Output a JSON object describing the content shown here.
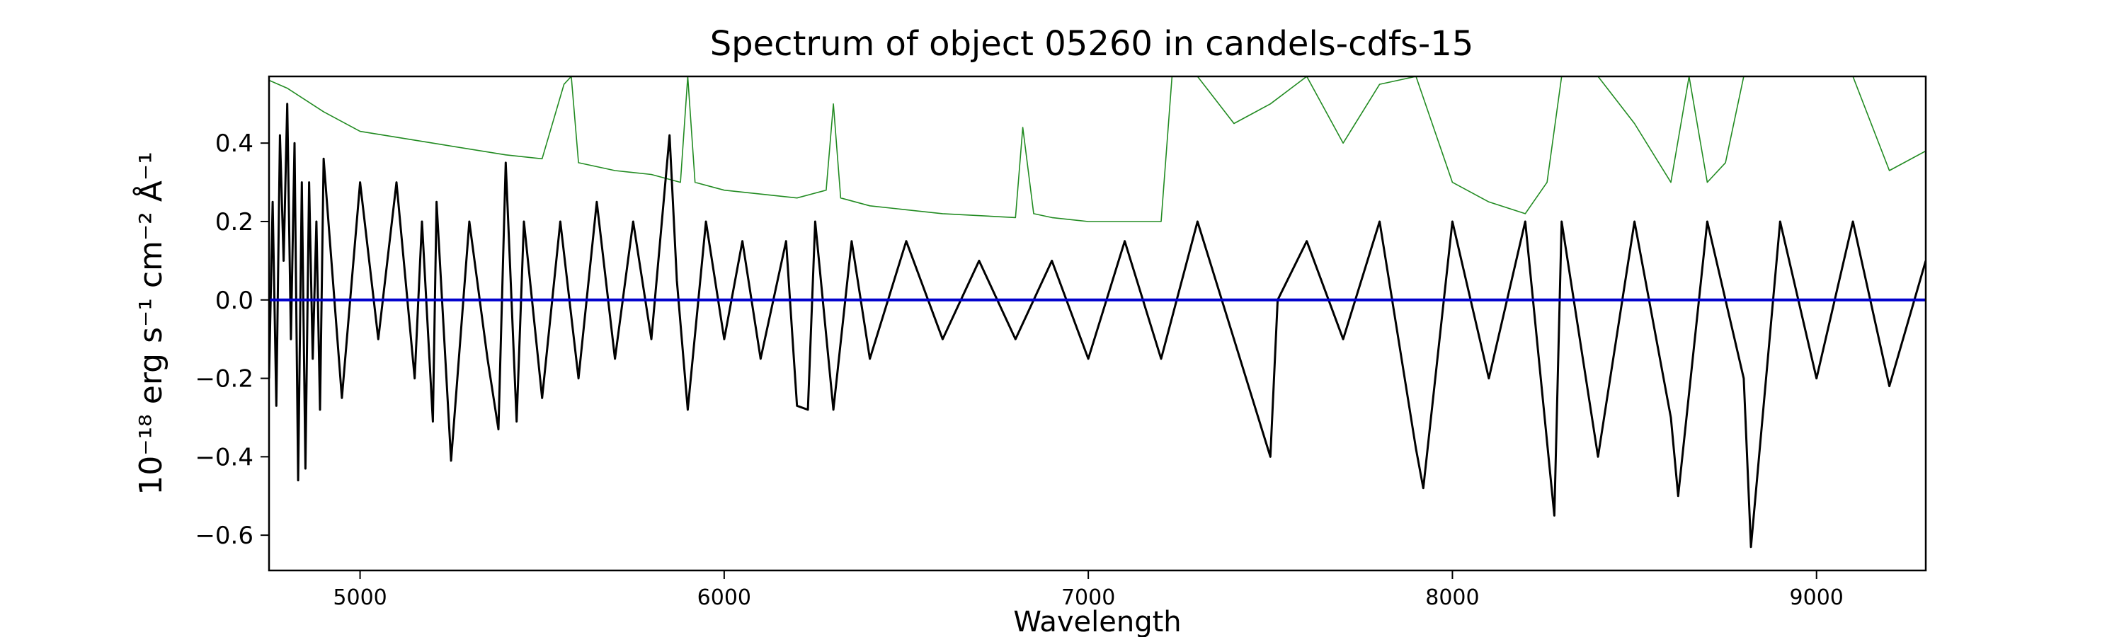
{
  "chart_data": {
    "type": "line",
    "title": "Spectrum of object 05260 in candels-cdfs-15",
    "xlabel": "Wavelength",
    "ylabel": "10⁻¹⁸ erg s⁻¹ cm⁻² Å⁻¹",
    "xlim": [
      4750,
      9300
    ],
    "ylim": [
      -0.69,
      0.57
    ],
    "xticks": [
      5000,
      6000,
      7000,
      8000,
      9000
    ],
    "yticks": [
      -0.6,
      -0.4,
      -0.2,
      0.0,
      0.2,
      0.4
    ],
    "ytick_labels": [
      "−0.6",
      "−0.4",
      "−0.2",
      "0.0",
      "0.2",
      "0.4"
    ],
    "grid": false,
    "colors": {
      "flux": "#000000",
      "error": "#228b22",
      "zero": "#0000cc"
    },
    "series": [
      {
        "role": "flux",
        "x": [
          4750,
          4760,
          4770,
          4780,
          4790,
          4800,
          4810,
          4820,
          4830,
          4840,
          4850,
          4860,
          4870,
          4880,
          4890,
          4900,
          4950,
          5000,
          5050,
          5100,
          5150,
          5170,
          5200,
          5210,
          5250,
          5300,
          5350,
          5380,
          5400,
          5430,
          5450,
          5500,
          5550,
          5600,
          5650,
          5700,
          5750,
          5800,
          5850,
          5870,
          5900,
          5950,
          6000,
          6050,
          6100,
          6170,
          6200,
          6230,
          6250,
          6300,
          6350,
          6400,
          6500,
          6600,
          6700,
          6800,
          6900,
          7000,
          7100,
          7200,
          7300,
          7400,
          7500,
          7520,
          7600,
          7700,
          7800,
          7900,
          7920,
          8000,
          8100,
          8200,
          8280,
          8300,
          8400,
          8500,
          8600,
          8620,
          8700,
          8800,
          8820,
          8900,
          9000,
          9100,
          9200,
          9300
        ],
        "y": [
          -0.2,
          0.25,
          -0.27,
          0.42,
          0.1,
          0.5,
          -0.1,
          0.4,
          -0.46,
          0.3,
          -0.43,
          0.3,
          -0.15,
          0.2,
          -0.28,
          0.36,
          -0.25,
          0.3,
          -0.1,
          0.3,
          -0.2,
          0.2,
          -0.31,
          0.25,
          -0.41,
          0.2,
          -0.15,
          -0.33,
          0.35,
          -0.31,
          0.2,
          -0.25,
          0.2,
          -0.2,
          0.25,
          -0.15,
          0.2,
          -0.1,
          0.42,
          0.05,
          -0.28,
          0.2,
          -0.1,
          0.15,
          -0.15,
          0.15,
          -0.27,
          -0.28,
          0.2,
          -0.28,
          0.15,
          -0.15,
          0.15,
          -0.1,
          0.1,
          -0.1,
          0.1,
          -0.15,
          0.15,
          -0.15,
          0.2,
          -0.1,
          -0.4,
          0.0,
          0.15,
          -0.1,
          0.2,
          -0.38,
          -0.48,
          0.2,
          -0.2,
          0.2,
          -0.55,
          0.2,
          -0.4,
          0.2,
          -0.3,
          -0.5,
          0.2,
          -0.2,
          -0.63,
          0.2,
          -0.2,
          0.2,
          -0.22,
          0.1
        ]
      },
      {
        "role": "error",
        "x": [
          4750,
          4800,
          4900,
          5000,
          5200,
          5400,
          5500,
          5560,
          5580,
          5600,
          5700,
          5800,
          5880,
          5900,
          5920,
          6000,
          6200,
          6280,
          6300,
          6320,
          6400,
          6600,
          6800,
          6820,
          6850,
          6900,
          7000,
          7200,
          7230,
          7300,
          7400,
          7500,
          7600,
          7700,
          7800,
          7900,
          8000,
          8100,
          8200,
          8260,
          8300,
          8400,
          8500,
          8600,
          8650,
          8700,
          8750,
          8800,
          8850,
          8900,
          9000,
          9100,
          9200,
          9300
        ],
        "y": [
          0.56,
          0.54,
          0.48,
          0.43,
          0.4,
          0.37,
          0.36,
          0.55,
          0.57,
          0.35,
          0.33,
          0.32,
          0.3,
          0.57,
          0.3,
          0.28,
          0.26,
          0.28,
          0.5,
          0.26,
          0.24,
          0.22,
          0.21,
          0.44,
          0.22,
          0.21,
          0.2,
          0.2,
          0.57,
          0.57,
          0.45,
          0.5,
          0.57,
          0.4,
          0.55,
          0.57,
          0.3,
          0.25,
          0.22,
          0.3,
          0.57,
          0.57,
          0.45,
          0.3,
          0.57,
          0.3,
          0.35,
          0.57,
          0.57,
          0.57,
          0.57,
          0.57,
          0.33,
          0.38
        ]
      },
      {
        "role": "zero",
        "x": [
          4750,
          9300
        ],
        "y": [
          0.0,
          0.0
        ]
      }
    ]
  }
}
